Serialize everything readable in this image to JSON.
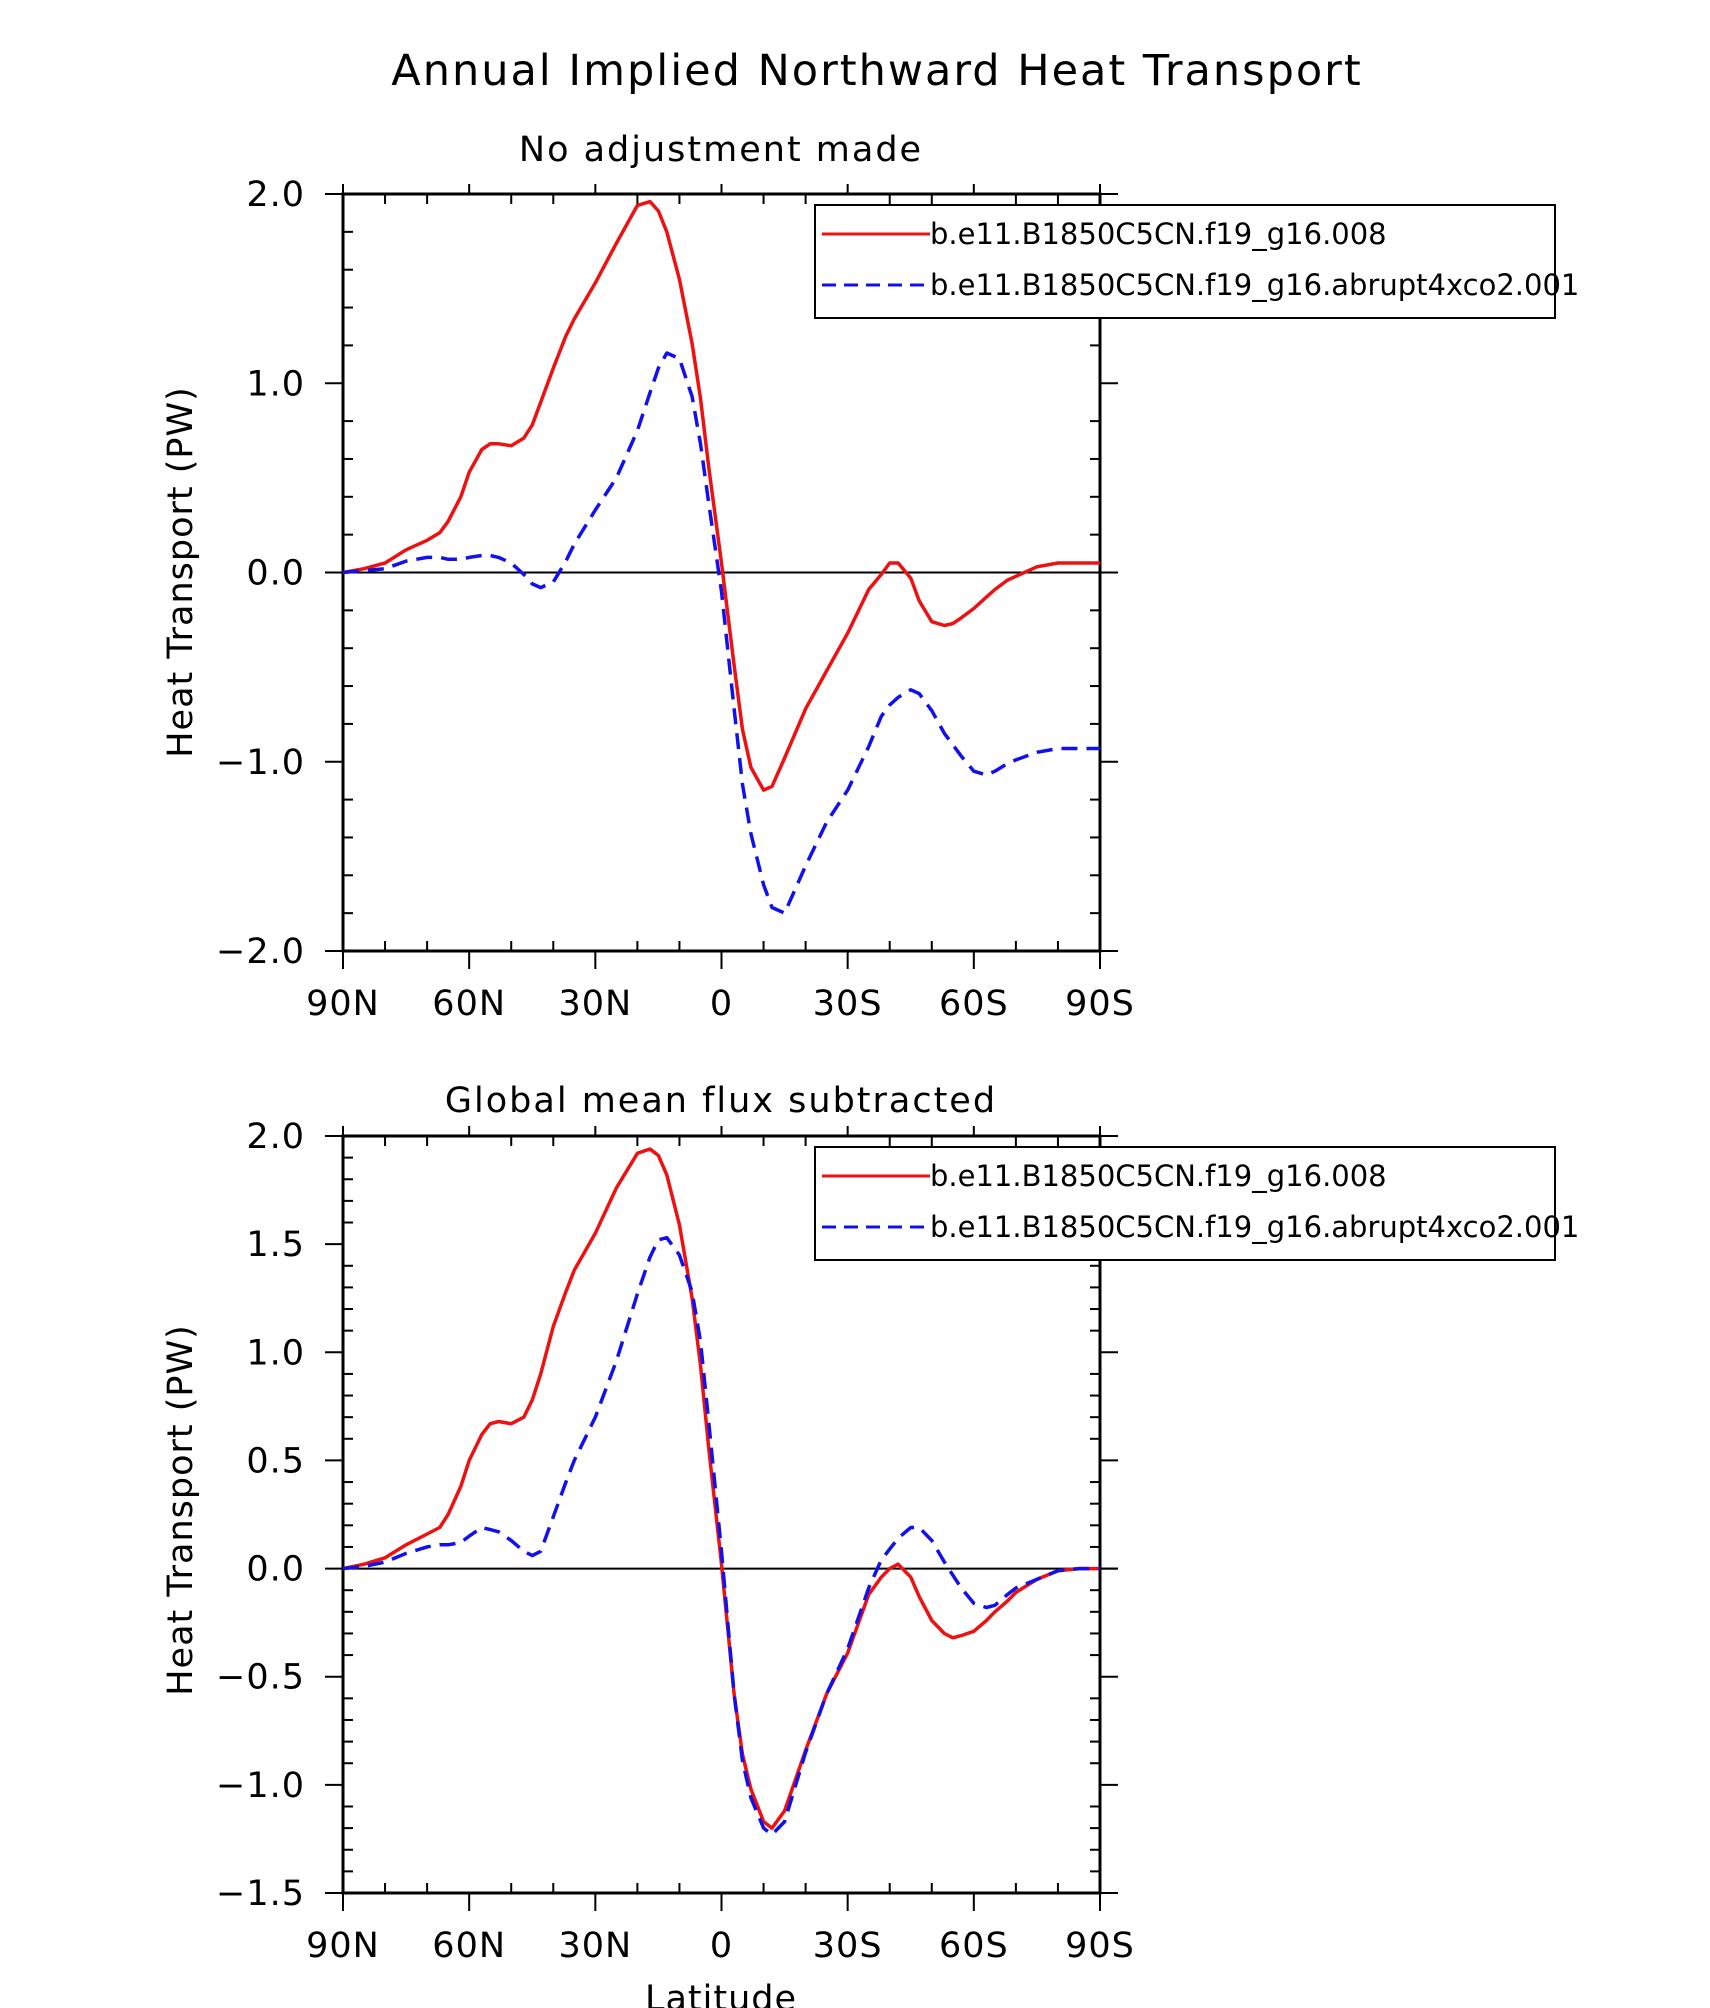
{
  "figure": {
    "title": "Annual Implied Northward Heat Transport",
    "xlabel": "Latitude"
  },
  "colors": {
    "control": "#ee1111",
    "abrupt": "#1111ee",
    "axis": "#000000",
    "background": "#ffffff"
  },
  "chart_data": [
    {
      "type": "line",
      "title": "No adjustment made",
      "xlabel": "",
      "ylabel": "Heat Transport (PW)",
      "xlim": [
        90,
        -90
      ],
      "ylim": [
        -2.0,
        2.0
      ],
      "xticks": [
        90,
        60,
        30,
        0,
        -30,
        -60,
        -90
      ],
      "xtick_labels": [
        "90N",
        "60N",
        "30N",
        "0",
        "30S",
        "60S",
        "90S"
      ],
      "yticks": [
        -2.0,
        -1.0,
        0.0,
        1.0,
        2.0
      ],
      "ytick_labels": [
        "−2.0",
        "−1.0",
        "0.0",
        "1.0",
        "2.0"
      ],
      "zero_line": true,
      "legend_position": "top-right",
      "x": [
        90,
        85,
        80,
        75,
        70,
        67,
        65,
        62,
        60,
        57,
        55,
        53,
        50,
        47,
        45,
        43,
        40,
        37,
        35,
        30,
        25,
        20,
        17,
        15,
        13,
        10,
        7,
        5,
        3,
        0,
        -3,
        -5,
        -7,
        -10,
        -12,
        -15,
        -20,
        -25,
        -30,
        -35,
        -38,
        -40,
        -42,
        -45,
        -47,
        -50,
        -53,
        -55,
        -57,
        -60,
        -63,
        -65,
        -68,
        -70,
        -75,
        -80,
        -85,
        -90
      ],
      "series": [
        {
          "name": "b.e11.B1850C5CN.f19_g16.008",
          "style": "solid",
          "values": [
            0.0,
            0.02,
            0.05,
            0.12,
            0.17,
            0.21,
            0.27,
            0.4,
            0.53,
            0.65,
            0.68,
            0.68,
            0.67,
            0.71,
            0.78,
            0.9,
            1.08,
            1.25,
            1.34,
            1.53,
            1.74,
            1.94,
            1.96,
            1.91,
            1.8,
            1.55,
            1.21,
            0.92,
            0.55,
            0.05,
            -0.49,
            -0.83,
            -1.03,
            -1.15,
            -1.13,
            -0.98,
            -0.72,
            -0.52,
            -0.32,
            -0.09,
            -0.01,
            0.05,
            0.05,
            -0.03,
            -0.15,
            -0.26,
            -0.28,
            -0.27,
            -0.24,
            -0.19,
            -0.13,
            -0.09,
            -0.04,
            -0.02,
            0.03,
            0.05,
            0.05,
            0.05
          ]
        },
        {
          "name": "b.e11.B1850C5CN.f19_g16.abrupt4xco2.001",
          "style": "dashed",
          "values": [
            0.0,
            0.01,
            0.02,
            0.06,
            0.08,
            0.08,
            0.07,
            0.07,
            0.08,
            0.09,
            0.09,
            0.08,
            0.05,
            -0.01,
            -0.06,
            -0.08,
            -0.05,
            0.06,
            0.15,
            0.33,
            0.5,
            0.75,
            0.95,
            1.08,
            1.16,
            1.13,
            0.93,
            0.68,
            0.36,
            -0.1,
            -0.72,
            -1.12,
            -1.38,
            -1.65,
            -1.77,
            -1.8,
            -1.55,
            -1.32,
            -1.15,
            -0.92,
            -0.76,
            -0.7,
            -0.66,
            -0.62,
            -0.64,
            -0.73,
            -0.85,
            -0.91,
            -0.97,
            -1.05,
            -1.07,
            -1.05,
            -1.01,
            -0.99,
            -0.95,
            -0.93,
            -0.93,
            -0.93
          ]
        }
      ]
    },
    {
      "type": "line",
      "title": "Global mean flux subtracted",
      "xlabel": "Latitude",
      "ylabel": "Heat Transport (PW)",
      "xlim": [
        90,
        -90
      ],
      "ylim": [
        -1.5,
        2.0
      ],
      "xticks": [
        90,
        60,
        30,
        0,
        -30,
        -60,
        -90
      ],
      "xtick_labels": [
        "90N",
        "60N",
        "30N",
        "0",
        "30S",
        "60S",
        "90S"
      ],
      "yticks": [
        -1.5,
        -1.0,
        -0.5,
        0.0,
        0.5,
        1.0,
        1.5,
        2.0
      ],
      "ytick_labels": [
        "−1.5",
        "−1.0",
        "−0.5",
        "0.0",
        "0.5",
        "1.0",
        "1.5",
        "2.0"
      ],
      "zero_line": true,
      "legend_position": "top-right",
      "x": [
        90,
        85,
        80,
        75,
        70,
        67,
        65,
        62,
        60,
        57,
        55,
        53,
        50,
        47,
        45,
        43,
        40,
        37,
        35,
        30,
        25,
        20,
        17,
        15,
        13,
        10,
        7,
        5,
        3,
        0,
        -3,
        -5,
        -7,
        -10,
        -12,
        -15,
        -20,
        -25,
        -30,
        -35,
        -38,
        -40,
        -42,
        -45,
        -47,
        -50,
        -53,
        -55,
        -57,
        -60,
        -63,
        -65,
        -68,
        -70,
        -75,
        -80,
        -85,
        -90
      ],
      "series": [
        {
          "name": "b.e11.B1850C5CN.f19_g16.008",
          "style": "solid",
          "values": [
            0.0,
            0.02,
            0.05,
            0.11,
            0.16,
            0.19,
            0.25,
            0.38,
            0.5,
            0.62,
            0.67,
            0.68,
            0.67,
            0.7,
            0.78,
            0.9,
            1.12,
            1.28,
            1.38,
            1.55,
            1.76,
            1.92,
            1.94,
            1.91,
            1.82,
            1.59,
            1.25,
            0.94,
            0.55,
            0.02,
            -0.58,
            -0.86,
            -1.02,
            -1.17,
            -1.2,
            -1.12,
            -0.84,
            -0.58,
            -0.39,
            -0.12,
            -0.04,
            0.0,
            0.02,
            -0.04,
            -0.13,
            -0.24,
            -0.3,
            -0.32,
            -0.31,
            -0.29,
            -0.24,
            -0.2,
            -0.15,
            -0.11,
            -0.05,
            -0.01,
            0.0,
            0.0
          ]
        },
        {
          "name": "b.e11.B1850C5CN.f19_g16.abrupt4xco2.001",
          "style": "dashed",
          "values": [
            0.0,
            0.01,
            0.03,
            0.07,
            0.1,
            0.11,
            0.11,
            0.12,
            0.15,
            0.19,
            0.18,
            0.17,
            0.13,
            0.08,
            0.06,
            0.08,
            0.24,
            0.4,
            0.5,
            0.7,
            0.96,
            1.27,
            1.44,
            1.52,
            1.53,
            1.45,
            1.28,
            1.05,
            0.67,
            0.08,
            -0.58,
            -0.89,
            -1.06,
            -1.2,
            -1.23,
            -1.17,
            -0.85,
            -0.58,
            -0.37,
            -0.09,
            0.04,
            0.09,
            0.14,
            0.19,
            0.19,
            0.13,
            0.03,
            -0.03,
            -0.09,
            -0.16,
            -0.18,
            -0.17,
            -0.12,
            -0.09,
            -0.05,
            -0.01,
            0.0,
            0.0
          ]
        }
      ]
    }
  ]
}
